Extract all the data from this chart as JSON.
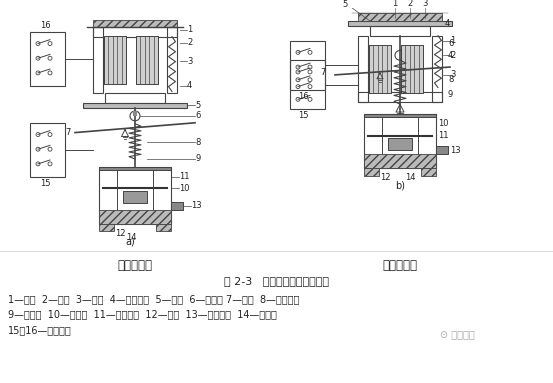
{
  "title": "图 2-3   空气阻尼式时间继电器",
  "label_left": "通电延时型",
  "label_right": "断电延时型",
  "sublabel_a": "a)",
  "sublabel_b": "b)",
  "caption_line1": "1—线圈  2—铁心  3—衔铁  4—反力弹簧  5—推板  6—活塞杆 7—杠杆  8—塔形弹簧",
  "caption_line2": "9—弱弹簧  10—橡皮膜  11—空气室壁  12—活塞  13—调节螺杆  14—进气孔",
  "caption_line3": "15、16—微动开关",
  "watermark": "电工之家",
  "bg_color": "#ffffff",
  "lc": "#444444",
  "text_color": "#222222",
  "fig_width": 5.53,
  "fig_height": 3.83,
  "dpi": 100
}
